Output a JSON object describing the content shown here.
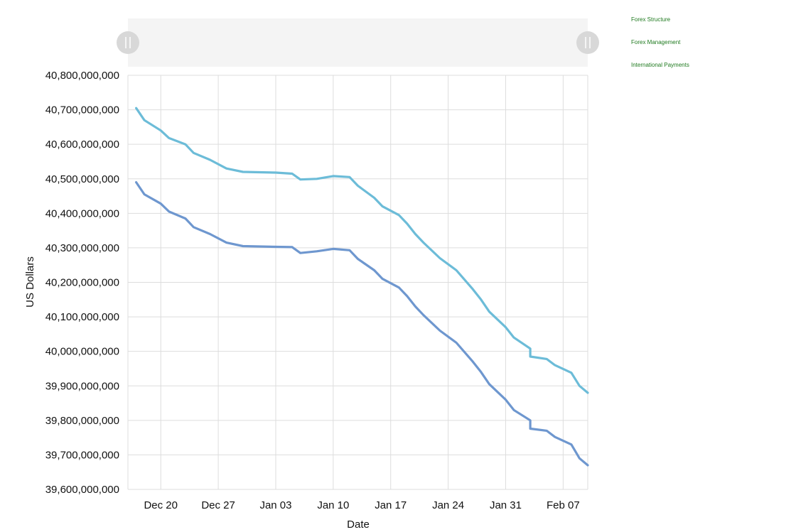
{
  "legend": {
    "items": [
      "Forex Structure",
      "Forex Management",
      "International Payments"
    ]
  },
  "colors": {
    "grid": "#dddddd",
    "navigator_bg": "#f4f4f4",
    "handle": "#d8d8d8",
    "legend_text": "#1f7a1f"
  },
  "chart_data": {
    "type": "line",
    "xlabel": "Date",
    "ylabel": "US Dollars",
    "ylim": [
      39600000000,
      40800000000
    ],
    "xlim": [
      "2020-12-16",
      "2021-02-10"
    ],
    "y_ticks": [
      {
        "value": 40800000000,
        "label": "40,800,000,000"
      },
      {
        "value": 40700000000,
        "label": "40,700,000,000"
      },
      {
        "value": 40600000000,
        "label": "40,600,000,000"
      },
      {
        "value": 40500000000,
        "label": "40,500,000,000"
      },
      {
        "value": 40400000000,
        "label": "40,400,000,000"
      },
      {
        "value": 40300000000,
        "label": "40,300,000,000"
      },
      {
        "value": 40200000000,
        "label": "40,200,000,000"
      },
      {
        "value": 40100000000,
        "label": "40,100,000,000"
      },
      {
        "value": 40000000000,
        "label": "40,000,000,000"
      },
      {
        "value": 39900000000,
        "label": "39,900,000,000"
      },
      {
        "value": 39800000000,
        "label": "39,800,000,000"
      },
      {
        "value": 39700000000,
        "label": "39,700,000,000"
      },
      {
        "value": 39600000000,
        "label": "39,600,000,000"
      }
    ],
    "x_ticks": [
      {
        "date": "2020-12-20",
        "label": "Dec 20"
      },
      {
        "date": "2020-12-27",
        "label": "Dec 27"
      },
      {
        "date": "2021-01-03",
        "label": "Jan 03"
      },
      {
        "date": "2021-01-10",
        "label": "Jan 10"
      },
      {
        "date": "2021-01-17",
        "label": "Jan 17"
      },
      {
        "date": "2021-01-24",
        "label": "Jan 24"
      },
      {
        "date": "2021-01-31",
        "label": "Jan 31"
      },
      {
        "date": "2021-02-07",
        "label": "Feb 07"
      }
    ],
    "grid": true,
    "series": [
      {
        "color": "#6cbcd8",
        "points": [
          [
            "2020-12-17",
            40705000000
          ],
          [
            "2020-12-18",
            40670000000
          ],
          [
            "2020-12-20",
            40640000000
          ],
          [
            "2020-12-21",
            40618000000
          ],
          [
            "2020-12-23",
            40600000000
          ],
          [
            "2020-12-24",
            40575000000
          ],
          [
            "2020-12-26",
            40555000000
          ],
          [
            "2020-12-28",
            40530000000
          ],
          [
            "2020-12-30",
            40520000000
          ],
          [
            "2021-01-03",
            40518000000
          ],
          [
            "2021-01-05",
            40515000000
          ],
          [
            "2021-01-06",
            40498000000
          ],
          [
            "2021-01-08",
            40500000000
          ],
          [
            "2021-01-10",
            40508000000
          ],
          [
            "2021-01-12",
            40505000000
          ],
          [
            "2021-01-13",
            40480000000
          ],
          [
            "2021-01-15",
            40445000000
          ],
          [
            "2021-01-16",
            40420000000
          ],
          [
            "2021-01-18",
            40395000000
          ],
          [
            "2021-01-19",
            40370000000
          ],
          [
            "2021-01-20",
            40340000000
          ],
          [
            "2021-01-21",
            40315000000
          ],
          [
            "2021-01-23",
            40270000000
          ],
          [
            "2021-01-25",
            40235000000
          ],
          [
            "2021-01-27",
            40180000000
          ],
          [
            "2021-01-28",
            40150000000
          ],
          [
            "2021-01-29",
            40115000000
          ],
          [
            "2021-01-31",
            40070000000
          ],
          [
            "2021-02-01",
            40040000000
          ],
          [
            "2021-02-03",
            40008000000
          ],
          [
            "2021-02-03",
            39985000000
          ],
          [
            "2021-02-05",
            39978000000
          ],
          [
            "2021-02-06",
            39960000000
          ],
          [
            "2021-02-08",
            39938000000
          ],
          [
            "2021-02-09",
            39900000000
          ],
          [
            "2021-02-10",
            39880000000
          ]
        ]
      },
      {
        "color": "#6e97cf",
        "points": [
          [
            "2020-12-17",
            40490000000
          ],
          [
            "2020-12-18",
            40455000000
          ],
          [
            "2020-12-20",
            40428000000
          ],
          [
            "2020-12-21",
            40405000000
          ],
          [
            "2020-12-23",
            40385000000
          ],
          [
            "2020-12-24",
            40360000000
          ],
          [
            "2020-12-26",
            40340000000
          ],
          [
            "2020-12-28",
            40315000000
          ],
          [
            "2020-12-30",
            40305000000
          ],
          [
            "2021-01-03",
            40303000000
          ],
          [
            "2021-01-05",
            40302000000
          ],
          [
            "2021-01-06",
            40285000000
          ],
          [
            "2021-01-08",
            40290000000
          ],
          [
            "2021-01-10",
            40297000000
          ],
          [
            "2021-01-12",
            40293000000
          ],
          [
            "2021-01-13",
            40268000000
          ],
          [
            "2021-01-15",
            40235000000
          ],
          [
            "2021-01-16",
            40210000000
          ],
          [
            "2021-01-18",
            40185000000
          ],
          [
            "2021-01-19",
            40160000000
          ],
          [
            "2021-01-20",
            40130000000
          ],
          [
            "2021-01-21",
            40105000000
          ],
          [
            "2021-01-23",
            40060000000
          ],
          [
            "2021-01-25",
            40025000000
          ],
          [
            "2021-01-27",
            39970000000
          ],
          [
            "2021-01-28",
            39940000000
          ],
          [
            "2021-01-29",
            39905000000
          ],
          [
            "2021-01-31",
            39860000000
          ],
          [
            "2021-02-01",
            39830000000
          ],
          [
            "2021-02-03",
            39800000000
          ],
          [
            "2021-02-03",
            39776000000
          ],
          [
            "2021-02-05",
            39770000000
          ],
          [
            "2021-02-06",
            39752000000
          ],
          [
            "2021-02-08",
            39730000000
          ],
          [
            "2021-02-09",
            39690000000
          ],
          [
            "2021-02-10",
            39670000000
          ]
        ]
      }
    ]
  }
}
